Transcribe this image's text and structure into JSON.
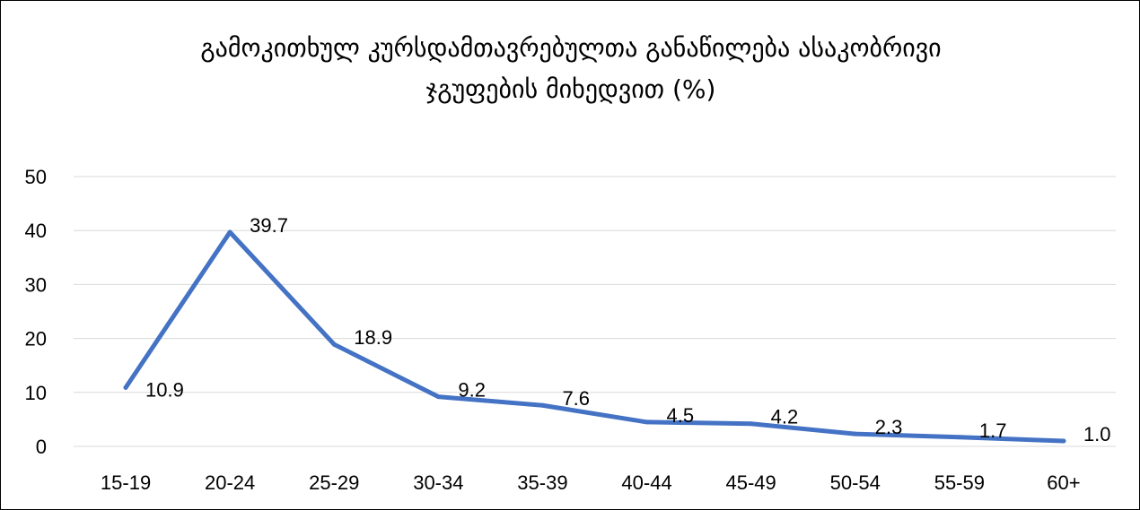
{
  "chart_data": {
    "type": "line",
    "title_lines": [
      "გამოკითხულ კურსდამთავრებულთა განაწილება ასაკობრივი",
      "ჯგუფების მიხედვით (%)"
    ],
    "categories": [
      "15-19",
      "20-24",
      "25-29",
      "30-34",
      "35-39",
      "40-44",
      "45-49",
      "50-54",
      "55-59",
      "60+"
    ],
    "series": [
      {
        "values": [
          10.9,
          39.7,
          18.9,
          9.2,
          7.6,
          4.5,
          4.2,
          2.3,
          1.7,
          1.0
        ],
        "labels": [
          "10.9",
          "39.7",
          "18.9",
          "9.2",
          "7.6",
          "4.5",
          "4.2",
          "2.3",
          "1.7",
          "1.0"
        ],
        "color": "#4472c4"
      }
    ],
    "yticks": [
      "0",
      "10",
      "20",
      "30",
      "40",
      "50"
    ],
    "ylim": [
      0,
      50
    ],
    "grid": true,
    "gridColor": "#d9d9d9",
    "legend": "none"
  }
}
